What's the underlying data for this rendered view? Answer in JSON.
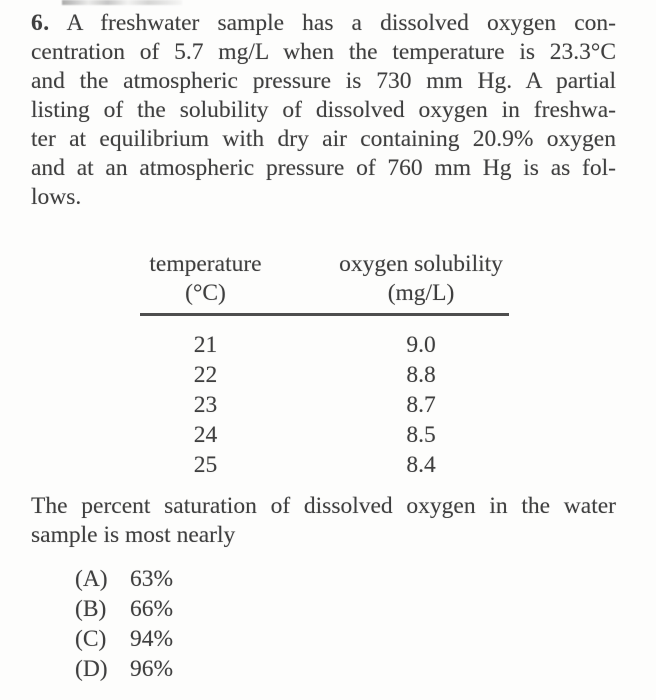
{
  "colors": {
    "background": "#fdfdfc",
    "text": "#3f3f3f",
    "table_rule": "#4e4e4e"
  },
  "question": {
    "number": "6.",
    "paragraph_lines": [
      "A freshwater sample has a dissolved oxygen con-",
      "centration of 5.7 mg/L when the temperature is 23.3°C",
      "and the atmospheric pressure is 730 mm Hg. A partial",
      "listing of the solubility of dissolved oxygen in freshwa-",
      "ter at equilibrium with dry air containing 20.9% oxygen",
      "and at an atmospheric pressure of 760 mm Hg is as fol-",
      "lows."
    ]
  },
  "table": {
    "col1_header": "temperature",
    "col1_unit": "(°C)",
    "col2_header": "oxygen solubility",
    "col2_unit": "(mg/L)",
    "rows": [
      {
        "temperature": "21",
        "solubility": "9.0"
      },
      {
        "temperature": "22",
        "solubility": "8.8"
      },
      {
        "temperature": "23",
        "solubility": "8.7"
      },
      {
        "temperature": "24",
        "solubility": "8.5"
      },
      {
        "temperature": "25",
        "solubility": "8.4"
      }
    ]
  },
  "stem": {
    "lines": [
      "The percent saturation of dissolved oxygen in the water",
      "sample is most nearly"
    ]
  },
  "choices": [
    {
      "label": "(A)",
      "value": "63%"
    },
    {
      "label": "(B)",
      "value": "66%"
    },
    {
      "label": "(C)",
      "value": "94%"
    },
    {
      "label": "(D)",
      "value": "96%"
    }
  ]
}
